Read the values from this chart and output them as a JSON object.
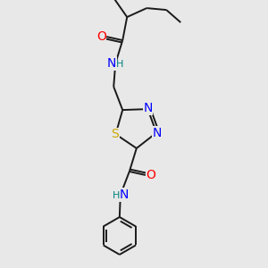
{
  "bg_color": "#e8e8e8",
  "bond_color": "#1a1a1a",
  "atom_colors": {
    "N": "#0000ff",
    "O": "#ff0000",
    "S": "#ccaa00",
    "H_label": "#008080",
    "C": "#000000"
  },
  "lw": 1.4,
  "font_size_atom": 10,
  "font_size_H": 8
}
